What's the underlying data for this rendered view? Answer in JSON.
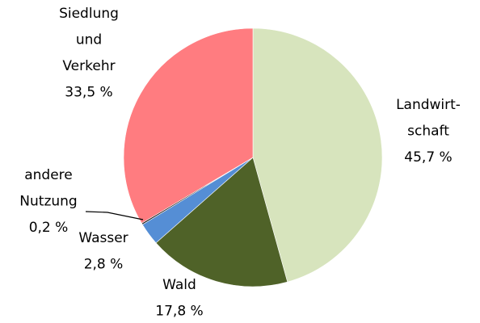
{
  "chart_data": {
    "type": "pie",
    "categories": [
      "Landwirt-\nschaft",
      "Wald",
      "Wasser",
      "andere\nNutzung",
      "Siedlung\nund\nVerkehr"
    ],
    "values": [
      45.7,
      17.8,
      2.8,
      0.2,
      33.5
    ],
    "value_labels": [
      "45,7 %",
      "17,8 %",
      "2,8 %",
      "0,2 %",
      "33,5 %"
    ],
    "colors": [
      "#d7e4bd",
      "#4f6228",
      "#558ed5",
      "#1f1f1f",
      "#ff7c80"
    ]
  }
}
